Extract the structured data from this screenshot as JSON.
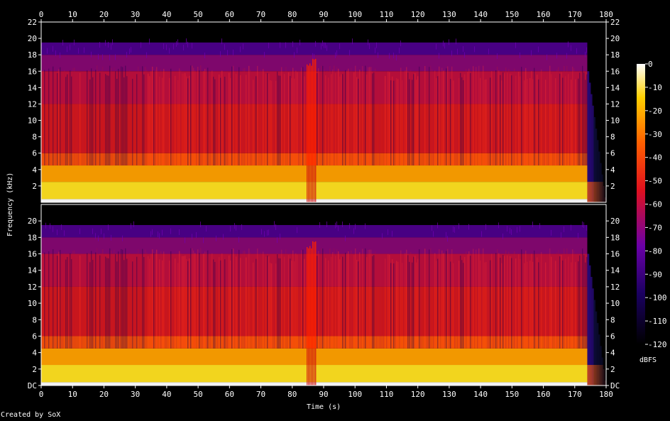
{
  "chart_data": {
    "type": "heatmap",
    "subtype": "spectrogram",
    "xlabel": "Time (s)",
    "ylabel": "Frequency (kHz)",
    "x_range": [
      0,
      180
    ],
    "x_ticks": [
      "0",
      "10",
      "20",
      "30",
      "40",
      "50",
      "60",
      "70",
      "80",
      "90",
      "100",
      "110",
      "120",
      "130",
      "140",
      "150",
      "160",
      "170",
      "180"
    ],
    "channels": [
      {
        "y_range": [
          0,
          22
        ],
        "y_ticks": [
          "2",
          "4",
          "6",
          "8",
          "10",
          "12",
          "14",
          "16",
          "18",
          "20",
          "22"
        ]
      },
      {
        "y_range": [
          0,
          22
        ],
        "y_ticks": [
          "DC",
          "2",
          "4",
          "6",
          "8",
          "10",
          "12",
          "14",
          "16",
          "18",
          "20"
        ]
      }
    ],
    "colorbar": {
      "unit": "dBFS",
      "range": [
        -120,
        0
      ],
      "ticks": [
        "0",
        "-10",
        "-20",
        "-30",
        "-40",
        "-50",
        "-60",
        "-70",
        "-80",
        "-90",
        "-100",
        "-110",
        "-120"
      ]
    },
    "audio_end_s": 174,
    "content_cutoff_khz": 19
  },
  "footer": {
    "credit": "Created by SoX"
  },
  "colors": {
    "background": "#000000",
    "axis": "#ffffff",
    "low": "#000000",
    "mid_low": "#5a00a0",
    "mid": "#e51a1a",
    "high": "#ffc400",
    "peak": "#ffffff"
  }
}
